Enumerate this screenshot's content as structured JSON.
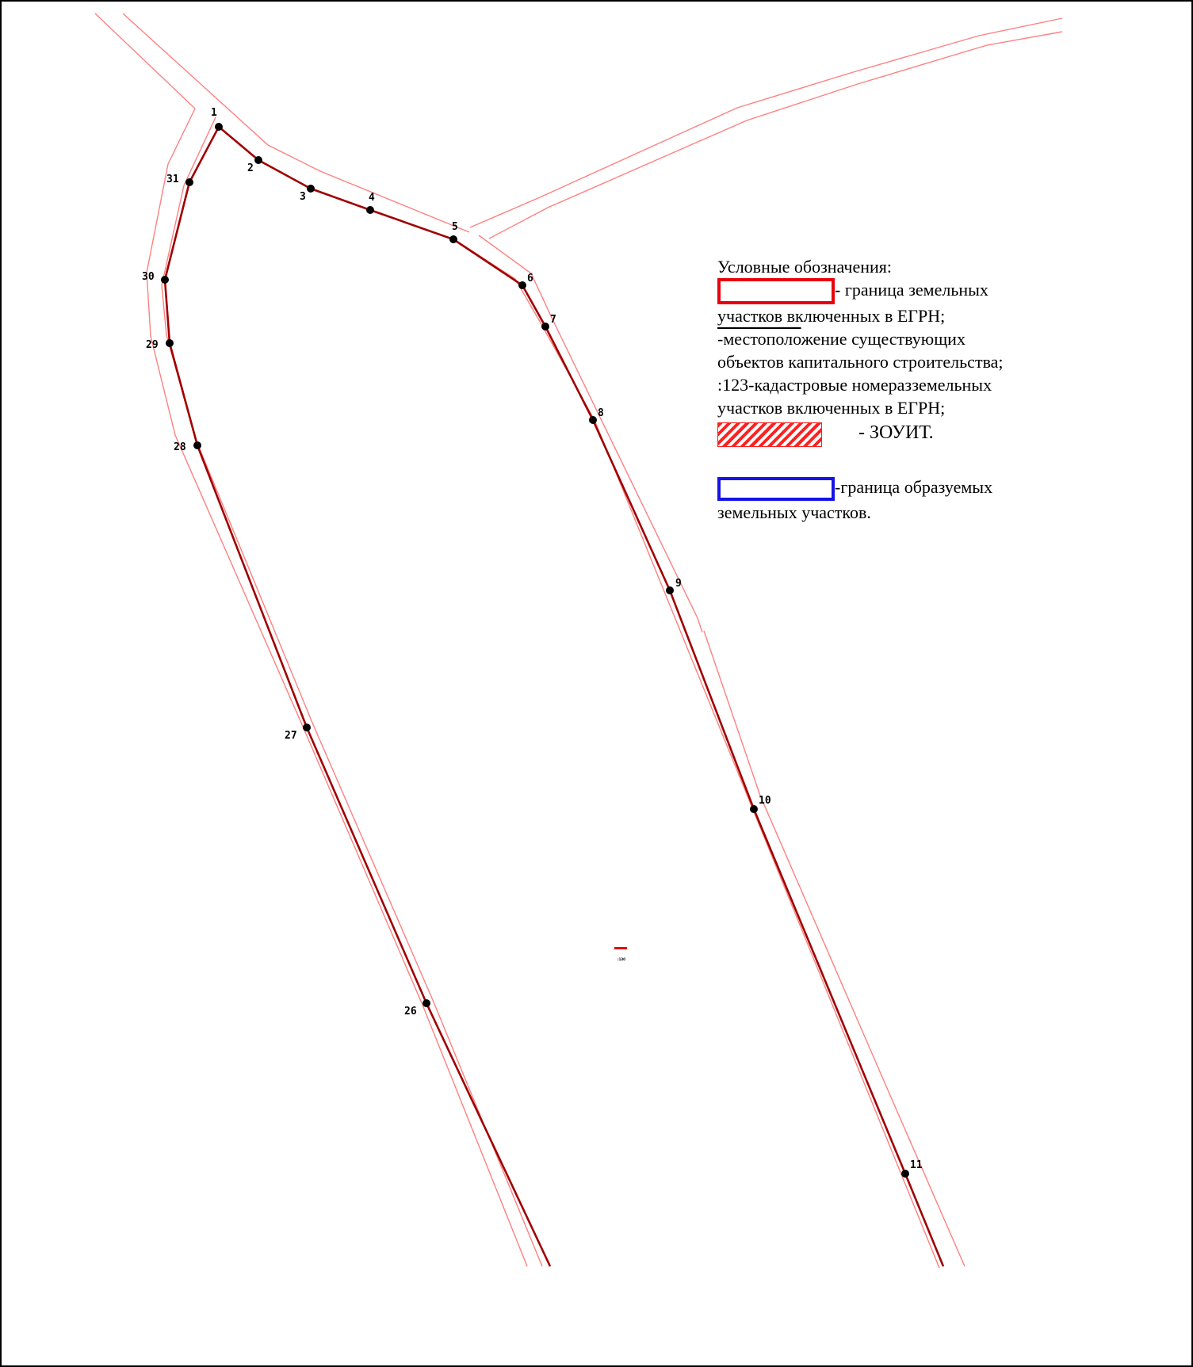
{
  "colors": {
    "frame": "#000000",
    "road_outline": "#ff8080",
    "parcel_boundary": "#a00000",
    "point": "#000000",
    "legend_red": "#e8000b",
    "legend_blue": "#1414e6",
    "hatch": "#ff2020"
  },
  "points": [
    {
      "id": "1",
      "label": "1"
    },
    {
      "id": "2",
      "label": "2"
    },
    {
      "id": "3",
      "label": "3"
    },
    {
      "id": "4",
      "label": "4"
    },
    {
      "id": "5",
      "label": "5"
    },
    {
      "id": "6",
      "label": "6"
    },
    {
      "id": "7",
      "label": "7"
    },
    {
      "id": "8",
      "label": "8"
    },
    {
      "id": "9",
      "label": "9"
    },
    {
      "id": "10",
      "label": "10"
    },
    {
      "id": "11",
      "label": "11"
    },
    {
      "id": "26",
      "label": "26"
    },
    {
      "id": "27",
      "label": "27"
    },
    {
      "id": "28",
      "label": "28"
    },
    {
      "id": "29",
      "label": "29"
    },
    {
      "id": "30",
      "label": "30"
    },
    {
      "id": "31",
      "label": "31"
    }
  ],
  "cadastral_labels": {
    "top": "",
    "bottom": ":130"
  },
  "legend": {
    "title": "Условные обозначения:",
    "red_boundary_text_1": "- граница земельных",
    "red_boundary_text_2": "участков включенных в ЕГРН;",
    "building_prefix": "-местополо",
    "building_text": "жение существующих",
    "building_text_2": "объектов капитального строительства;",
    "cadastral_text_1": ":123-кадастровые номеразземельных",
    "cadastral_text_2": "участков включенных в ЕГРН;",
    "zouit_text": "- ЗОУИТ.",
    "blue_text_1": "-граница образуемых",
    "blue_text_2": "земельных участков."
  }
}
